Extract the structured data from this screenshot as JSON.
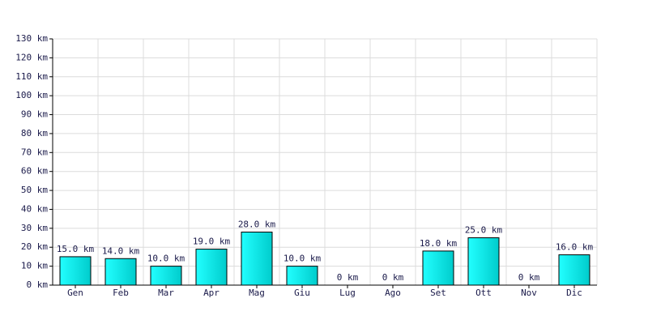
{
  "chart_data": {
    "type": "bar",
    "categories": [
      "Gen",
      "Feb",
      "Mar",
      "Apr",
      "Mag",
      "Giu",
      "Lug",
      "Ago",
      "Set",
      "Ott",
      "Nov",
      "Dic"
    ],
    "values": [
      15,
      14,
      10,
      19,
      28,
      10,
      0,
      0,
      18,
      25,
      0,
      16
    ],
    "value_labels": [
      "15.0 km",
      "14.0 km",
      "10.0 km",
      "19.0 km",
      "28.0 km",
      "10.0 km",
      "0 km",
      "0 km",
      "18.0 km",
      "25.0 km",
      "0 km",
      "16.0 km"
    ],
    "color": "#00cccc",
    "ylim": [
      0,
      130
    ],
    "yticks": [
      {
        "value": 0,
        "label": "0 km"
      },
      {
        "value": 10,
        "label": "10 km"
      },
      {
        "value": 20,
        "label": "20 km"
      },
      {
        "value": 30,
        "label": "30 km"
      },
      {
        "value": 40,
        "label": "40 km"
      },
      {
        "value": 50,
        "label": "50 km"
      },
      {
        "value": 60,
        "label": "60 km"
      },
      {
        "value": 70,
        "label": "70 km"
      },
      {
        "value": 80,
        "label": "80 km"
      },
      {
        "value": 90,
        "label": "90 km"
      },
      {
        "value": 100,
        "label": "100 km"
      },
      {
        "value": 110,
        "label": "110 km"
      },
      {
        "value": 120,
        "label": "120 km"
      },
      {
        "value": 130,
        "label": "130 km"
      }
    ],
    "grid": true
  }
}
